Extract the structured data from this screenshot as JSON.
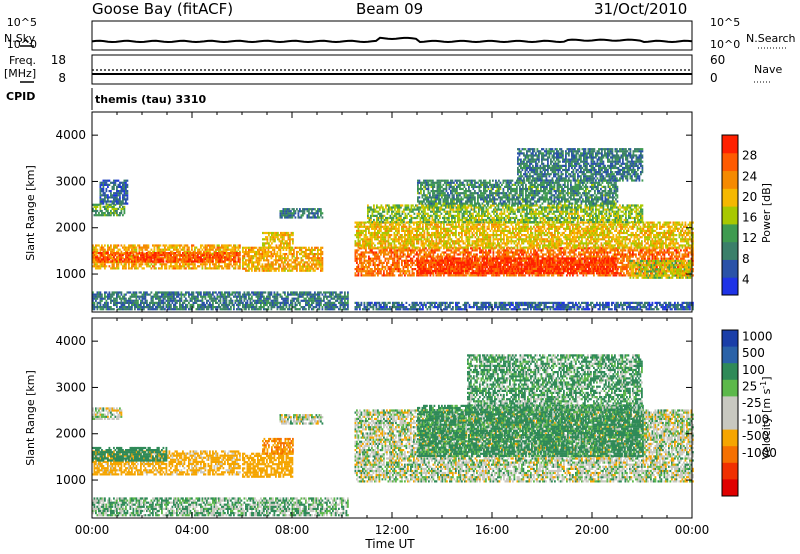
{
  "header": {
    "station": "Goose Bay (fitACF)",
    "beam": "Beam 09",
    "date": "31/Oct/2010"
  },
  "strip_labels": {
    "nsky": "N.Sky",
    "nsearch": "N.Search",
    "freq": "Freq.",
    "freq_unit": "[MHz]",
    "nave": "Nave",
    "cpid": "CPID",
    "cpid_value": "themis (tau) 3310",
    "nsky_ticks": [
      "10^5",
      "10^0"
    ],
    "nsearch_ticks": [
      "10^5",
      "10^0"
    ],
    "freq_ticks": [
      "18",
      "8"
    ],
    "nave_ticks": [
      "60",
      "0"
    ]
  },
  "axes": {
    "xlabel": "Time UT",
    "ylabel": "Slant Range [km]",
    "x_ticks": [
      "00:00",
      "04:00",
      "08:00",
      "12:00",
      "16:00",
      "20:00",
      "00:00"
    ],
    "y_ticks": [
      "1000",
      "2000",
      "3000",
      "4000"
    ]
  },
  "power_colorbar": {
    "label": "Power [dB]",
    "ticks": [
      "4",
      "8",
      "12",
      "16",
      "20",
      "24",
      "28"
    ],
    "colors": [
      "#1f33e6",
      "#2a52a8",
      "#3b7f6a",
      "#3f9b50",
      "#a8c800",
      "#f5b800",
      "#f58a00",
      "#ff5a00",
      "#ff2000"
    ]
  },
  "velocity_colorbar": {
    "label": "Velocity [m s",
    "label_sup": "-1",
    "label_end": "]",
    "ticks": [
      "1000",
      "500",
      "100",
      "25",
      "-25",
      "-100",
      "-500",
      "-1000"
    ],
    "colors": [
      "#1a3ea8",
      "#2a62a8",
      "#2f8a58",
      "#5cb84a",
      "#c8c8c0",
      "#c8c8c0",
      "#f5a500",
      "#f57000",
      "#f03000",
      "#e00000"
    ]
  },
  "chart_data": {
    "type": "heatmap",
    "x_unit": "hours UT",
    "xlim": [
      0,
      24
    ],
    "ylim": [
      180,
      4500
    ],
    "power_bands": [
      {
        "t": [
          0,
          5.9
        ],
        "r": [
          1100,
          1600
        ],
        "p": 20
      },
      {
        "t": [
          0,
          5.9
        ],
        "r": [
          1250,
          1450
        ],
        "p": 26
      },
      {
        "t": [
          0,
          1.3
        ],
        "r": [
          2250,
          2500
        ],
        "p": 12
      },
      {
        "t": [
          0.3,
          1.4
        ],
        "r": [
          2500,
          3000
        ],
        "p": 6
      },
      {
        "t": [
          0,
          10.2
        ],
        "r": [
          220,
          600
        ],
        "p": 8
      },
      {
        "t": [
          6,
          9.2
        ],
        "r": [
          1050,
          1550
        ],
        "p": 20
      },
      {
        "t": [
          6.8,
          8.0
        ],
        "r": [
          1550,
          1900
        ],
        "p": 18
      },
      {
        "t": [
          7.5,
          9.2
        ],
        "r": [
          2200,
          2400
        ],
        "p": 8
      },
      {
        "t": [
          10.5,
          24
        ],
        "r": [
          950,
          1550
        ],
        "p": 24
      },
      {
        "t": [
          13,
          21
        ],
        "r": [
          1000,
          1350
        ],
        "p": 28
      },
      {
        "t": [
          10.5,
          24
        ],
        "r": [
          1550,
          2100
        ],
        "p": 18
      },
      {
        "t": [
          11,
          22
        ],
        "r": [
          2100,
          2500
        ],
        "p": 14
      },
      {
        "t": [
          13,
          21
        ],
        "r": [
          2500,
          3000
        ],
        "p": 10
      },
      {
        "t": [
          17,
          22
        ],
        "r": [
          3000,
          3700
        ],
        "p": 8
      },
      {
        "t": [
          21.5,
          24
        ],
        "r": [
          900,
          1300
        ],
        "p": 16
      },
      {
        "t": [
          10.5,
          24
        ],
        "r": [
          220,
          400
        ],
        "p": 6
      }
    ],
    "velocity_bands": [
      {
        "t": [
          0,
          5.9
        ],
        "r": [
          1100,
          1600
        ],
        "v": -120
      },
      {
        "t": [
          0,
          3
        ],
        "r": [
          1400,
          1700
        ],
        "v": 150
      },
      {
        "t": [
          6,
          8
        ],
        "r": [
          1050,
          1550
        ],
        "v": -200
      },
      {
        "t": [
          6.8,
          8.0
        ],
        "r": [
          1550,
          1900
        ],
        "v": -300
      },
      {
        "t": [
          0,
          1.2
        ],
        "r": [
          2300,
          2550
        ],
        "v": 0
      },
      {
        "t": [
          7.5,
          9.2
        ],
        "r": [
          2200,
          2400
        ],
        "v": 0
      },
      {
        "t": [
          10.5,
          24
        ],
        "r": [
          950,
          2500
        ],
        "v": 0
      },
      {
        "t": [
          13,
          22
        ],
        "r": [
          1500,
          2600
        ],
        "v": 120
      },
      {
        "t": [
          15,
          22
        ],
        "r": [
          2500,
          3700
        ],
        "v": 80
      },
      {
        "t": [
          0,
          10.2
        ],
        "r": [
          220,
          600
        ],
        "v": 50
      }
    ]
  }
}
